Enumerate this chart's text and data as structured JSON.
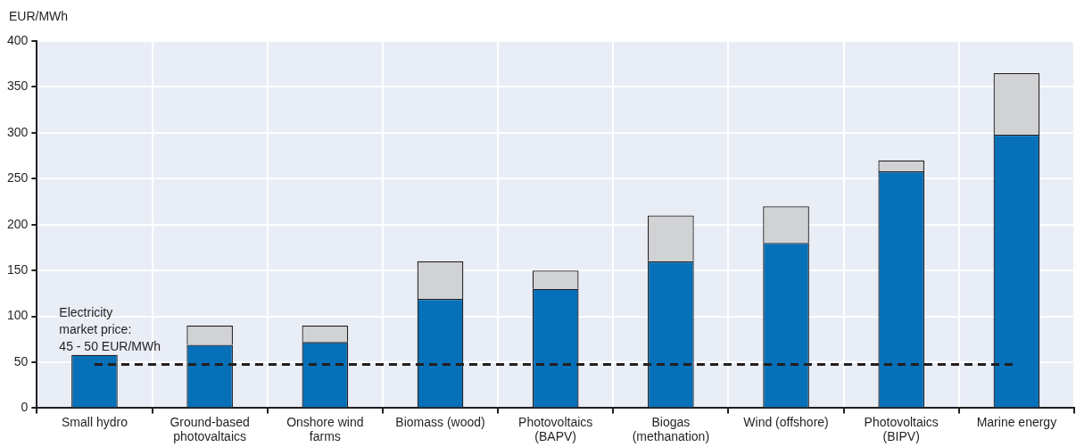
{
  "chart_data": {
    "type": "bar",
    "ylabel": "EUR/MWh",
    "stacked": true,
    "grid": true,
    "legend": false,
    "categories": [
      "Small hydro",
      "Ground-based photovaltaics",
      "Onshore wind farms",
      "Biomass (wood)",
      "Photovoltaics (BAPV)",
      "Biogas (methanation)",
      "Wind (offshore)",
      "Photovoltaics (BIPV)",
      "Marine energy"
    ],
    "series": [
      {
        "color": "#0670b8",
        "values": [
          58,
          69,
          72,
          119,
          130,
          160,
          180,
          258,
          298
        ]
      },
      {
        "color": "#d1d2d4",
        "values": [
          null,
          21,
          18,
          41,
          20,
          50,
          40,
          12,
          67
        ]
      }
    ],
    "ylim": [
      0,
      400
    ],
    "yticks": [
      0,
      50,
      100,
      150,
      200,
      250,
      300,
      350,
      400
    ],
    "annotations": [
      "Electricity market price: 45 - 50 EUR/MWh"
    ],
    "ref_lines": [
      {
        "axis": "y",
        "value": 47.5,
        "color": "#231f20",
        "line_style": "dashed"
      }
    ]
  }
}
